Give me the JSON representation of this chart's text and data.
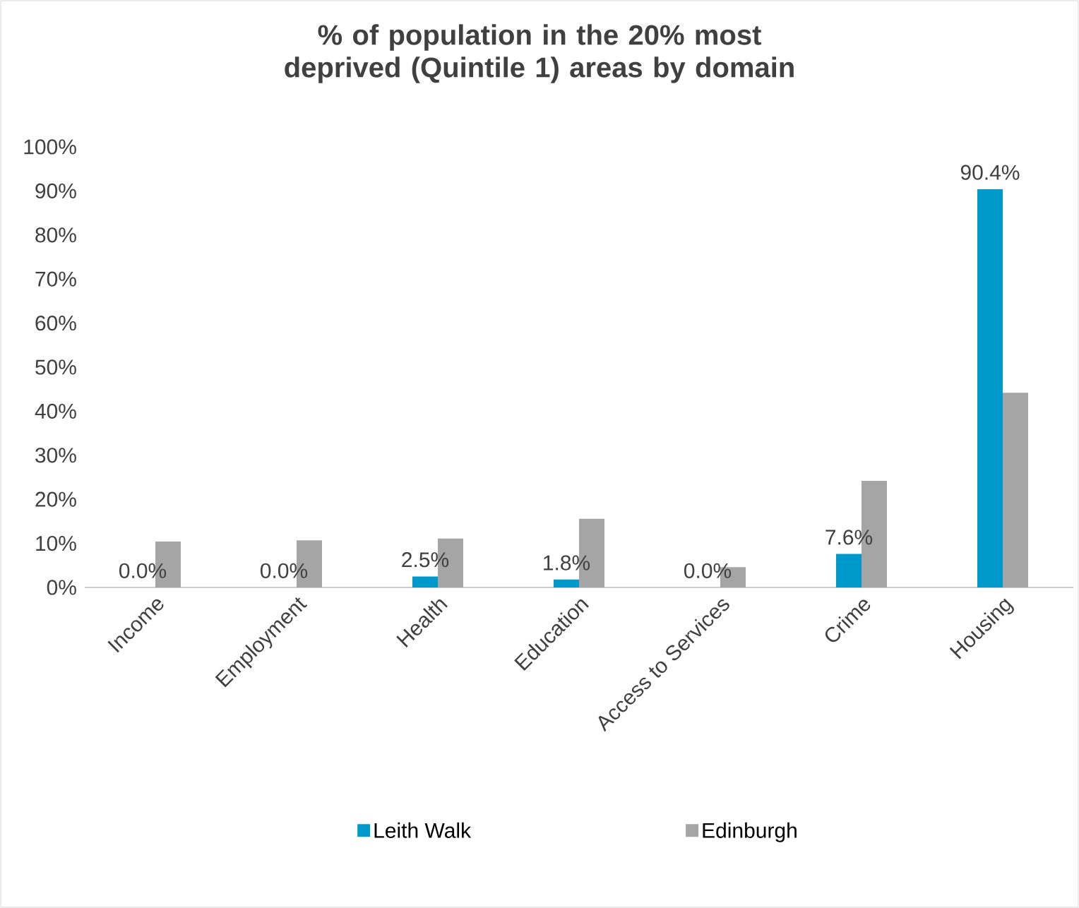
{
  "chart_data": {
    "type": "bar",
    "title": "% of population in the 20% most deprived (Quintile 1) areas by domain",
    "categories": [
      "Income",
      "Employment",
      "Health",
      "Education",
      "Access to Services",
      "Crime",
      "Housing"
    ],
    "series": [
      {
        "name": "Leith Walk",
        "color": "#0099cc",
        "values": [
          0.0,
          0.0,
          2.5,
          1.8,
          0.0,
          7.6,
          90.4
        ],
        "value_labels": [
          "0.0%",
          "0.0%",
          "2.5%",
          "1.8%",
          "0.0%",
          "7.6%",
          "90.4%"
        ]
      },
      {
        "name": "Edinburgh",
        "color": "#a5a5a5",
        "values": [
          10.4,
          10.7,
          11.1,
          15.6,
          4.6,
          24.2,
          44.2
        ]
      }
    ],
    "ylim": [
      0,
      100
    ],
    "yticks": [
      {
        "value": 0,
        "label": "0%"
      },
      {
        "value": 10,
        "label": "10%"
      },
      {
        "value": 20,
        "label": "20%"
      },
      {
        "value": 30,
        "label": "30%"
      },
      {
        "value": 40,
        "label": "40%"
      },
      {
        "value": 50,
        "label": "50%"
      },
      {
        "value": 60,
        "label": "60%"
      },
      {
        "value": 70,
        "label": "70%"
      },
      {
        "value": 80,
        "label": "80%"
      },
      {
        "value": 90,
        "label": "90%"
      },
      {
        "value": 100,
        "label": "100%"
      }
    ],
    "legend": "bottom"
  }
}
